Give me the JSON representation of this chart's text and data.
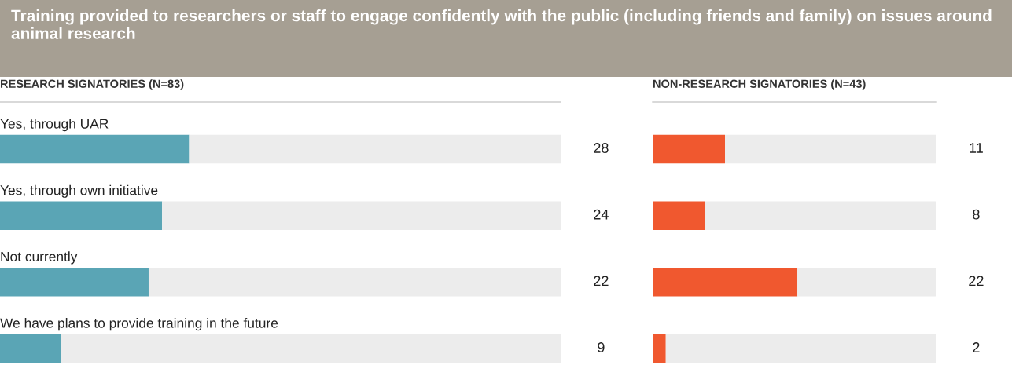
{
  "chart_data": [
    {
      "type": "bar",
      "orientation": "horizontal",
      "stacked": true,
      "title": "Training provided to researchers or staff to engage confidently with the public (including friends and family) on issues around animal research",
      "subtitle": "RESEARCH SIGNATORIES (N=83)",
      "categories": [
        "Yes, through UAR",
        "Yes, through own initiative",
        "Not currently",
        "We have plans to provide training in the future"
      ],
      "xlim": [
        0,
        83
      ],
      "series": [
        {
          "color": "#5aa5b5",
          "values": [
            28,
            24,
            22,
            9
          ],
          "value_labels": [
            "28",
            "24",
            "22",
            "9"
          ]
        },
        {
          "color": "#ececec",
          "values": [
            55,
            59,
            61,
            74
          ]
        }
      ]
    },
    {
      "type": "bar",
      "orientation": "horizontal",
      "stacked": true,
      "subtitle": "NON-RESEARCH SIGNATORIES (N=43)",
      "categories": [
        null,
        null,
        null,
        null
      ],
      "xlim": [
        0,
        43
      ],
      "series": [
        {
          "color": "#f0582f",
          "values": [
            11,
            8,
            22,
            2
          ],
          "value_labels": [
            "11",
            "8",
            "22",
            "2"
          ]
        },
        {
          "color": "#ececec",
          "values": [
            32,
            35,
            21,
            41
          ]
        }
      ]
    }
  ]
}
